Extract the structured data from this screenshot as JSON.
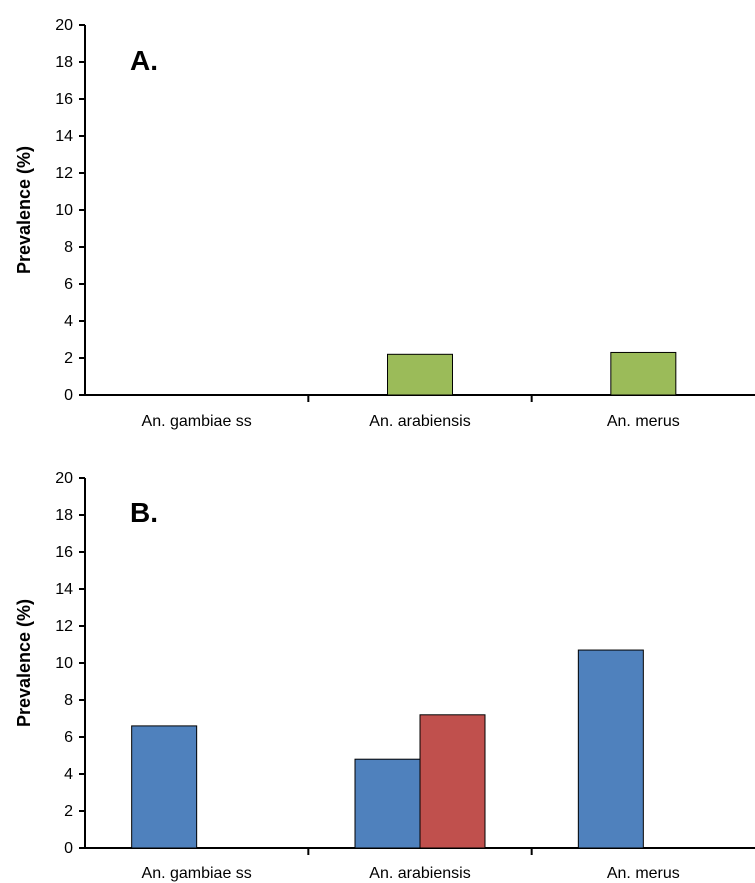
{
  "chart_data": [
    {
      "type": "bar",
      "panel_label": "A.",
      "ylabel": "Prevalence (%)",
      "ylim": [
        0,
        20
      ],
      "yticks": [
        0,
        2,
        4,
        6,
        8,
        10,
        12,
        14,
        16,
        18,
        20
      ],
      "categories": [
        "An. gambiae ss",
        "An. arabiensis",
        "An. merus"
      ],
      "series": [
        {
          "color": "#9bbb59",
          "values": [
            0,
            2.2,
            2.3
          ]
        }
      ]
    },
    {
      "type": "bar",
      "panel_label": "B.",
      "ylabel": "Prevalence (%)",
      "ylim": [
        0,
        20
      ],
      "yticks": [
        0,
        2,
        4,
        6,
        8,
        10,
        12,
        14,
        16,
        18,
        20
      ],
      "categories": [
        "An. gambiae ss",
        "An. arabiensis",
        "An. merus"
      ],
      "series": [
        {
          "color": "#4f81bd",
          "values": [
            6.6,
            4.8,
            10.7
          ]
        },
        {
          "color": "#c0504d",
          "values": [
            0,
            7.2,
            0
          ]
        }
      ]
    }
  ]
}
